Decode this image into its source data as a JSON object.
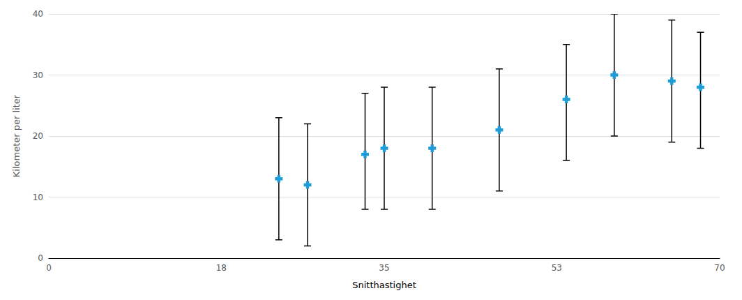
{
  "chart_data": {
    "type": "scatter",
    "x": [
      24,
      27,
      33,
      35,
      40,
      47,
      54,
      59,
      65,
      68
    ],
    "values": [
      13,
      12,
      17,
      18,
      18,
      21,
      26,
      30,
      29,
      28
    ],
    "error_bars": {
      "upper": [
        10,
        10,
        10,
        10,
        10,
        10,
        9,
        10,
        10,
        9
      ],
      "lower": [
        10,
        10,
        9,
        10,
        10,
        10,
        10,
        10,
        10,
        10
      ],
      "color": "black"
    },
    "color": "#1E9CD7",
    "marker": "plus",
    "xlabel": "Snitthastighet",
    "ylabel": "Kilometer per liter",
    "xlim": [
      0,
      70
    ],
    "ylim": [
      0,
      40
    ],
    "xticks": [
      0,
      18,
      35,
      53,
      70
    ],
    "yticks": [
      0,
      10,
      20,
      30,
      40
    ],
    "grid": true
  }
}
